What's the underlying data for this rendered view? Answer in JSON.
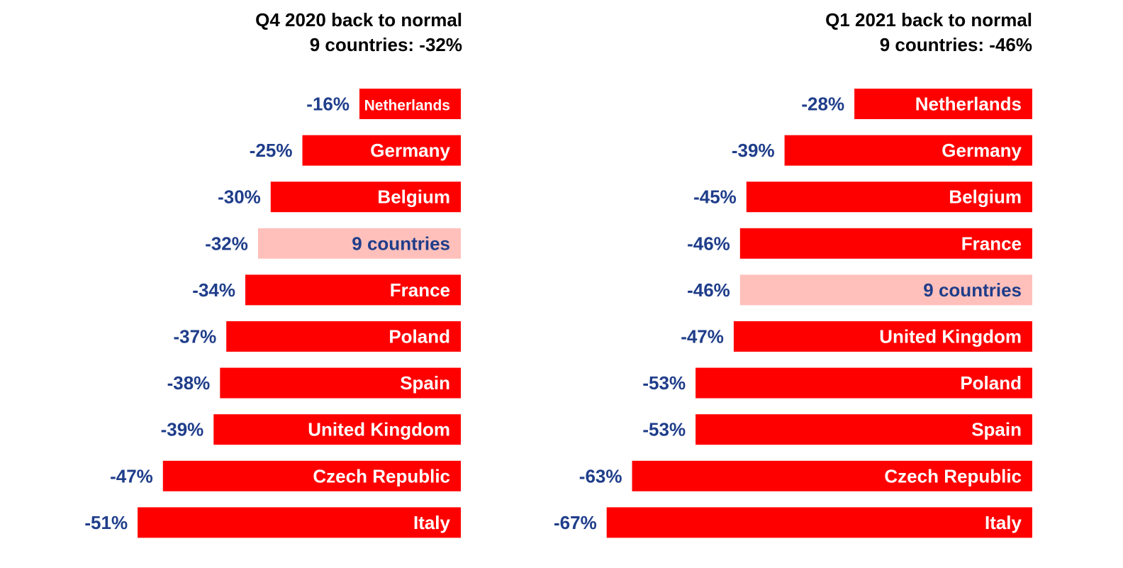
{
  "colors": {
    "bar": "#ff0000",
    "bar_highlight": "#ffc0bb",
    "text_dark": "#1f3d8a",
    "text_white": "#ffffff"
  },
  "chart_data": [
    {
      "type": "bar",
      "orientation": "horizontal",
      "title": [
        "Q4 2020 back to normal",
        "9 countries: -32%"
      ],
      "xlim": [
        -52,
        0
      ],
      "grid": false,
      "highlight_category": "9 countries",
      "categories": [
        "Netherlands",
        "Germany",
        "Belgium",
        "9 countries",
        "France",
        "Poland",
        "Spain",
        "United Kingdom",
        "Czech Republic",
        "Italy"
      ],
      "values": [
        -16,
        -25,
        -30,
        -32,
        -34,
        -37,
        -38,
        -39,
        -47,
        -51
      ],
      "value_labels": [
        "-16%",
        "-25%",
        "-30%",
        "-32%",
        "-34%",
        "-37%",
        "-38%",
        "-39%",
        "-47%",
        "-51%"
      ]
    },
    {
      "type": "bar",
      "orientation": "horizontal",
      "title": [
        "Q1 2021 back to normal",
        "9 countries: -46%"
      ],
      "xlim": [
        -68,
        0
      ],
      "grid": false,
      "highlight_category": "9 countries",
      "categories": [
        "Netherlands",
        "Germany",
        "Belgium",
        "France",
        "9 countries",
        "United Kingdom",
        "Poland",
        "Spain",
        "Czech Republic",
        "Italy"
      ],
      "values": [
        -28,
        -39,
        -45,
        -46,
        -46,
        -47,
        -53,
        -53,
        -63,
        -67
      ],
      "value_labels": [
        "-28%",
        "-39%",
        "-45%",
        "-46%",
        "-46%",
        "-47%",
        "-53%",
        "-53%",
        "-63%",
        "-67%"
      ]
    }
  ]
}
